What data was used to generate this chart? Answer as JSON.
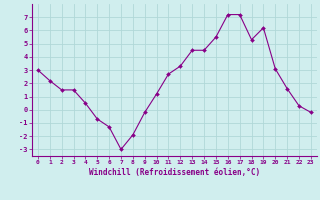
{
  "x": [
    0,
    1,
    2,
    3,
    4,
    5,
    6,
    7,
    8,
    9,
    10,
    11,
    12,
    13,
    14,
    15,
    16,
    17,
    18,
    19,
    20,
    21,
    22,
    23
  ],
  "y": [
    3,
    2.2,
    1.5,
    1.5,
    0.5,
    -0.7,
    -1.3,
    -3.0,
    -1.9,
    -0.2,
    1.2,
    2.7,
    3.3,
    4.5,
    4.5,
    5.5,
    7.2,
    7.2,
    5.3,
    6.2,
    3.1,
    1.6,
    0.3,
    -0.2
  ],
  "line_color": "#880088",
  "marker_color": "#880088",
  "background_color": "#d0eeee",
  "grid_color": "#b0d8d8",
  "xlabel": "Windchill (Refroidissement éolien,°C)",
  "xlabel_color": "#880088",
  "tick_color": "#880088",
  "spine_color": "#880088",
  "ylim": [
    -3.5,
    8.0
  ],
  "xlim": [
    -0.5,
    23.5
  ],
  "yticks": [
    -3,
    -2,
    -1,
    0,
    1,
    2,
    3,
    4,
    5,
    6,
    7
  ],
  "xticks": [
    0,
    1,
    2,
    3,
    4,
    5,
    6,
    7,
    8,
    9,
    10,
    11,
    12,
    13,
    14,
    15,
    16,
    17,
    18,
    19,
    20,
    21,
    22,
    23
  ]
}
